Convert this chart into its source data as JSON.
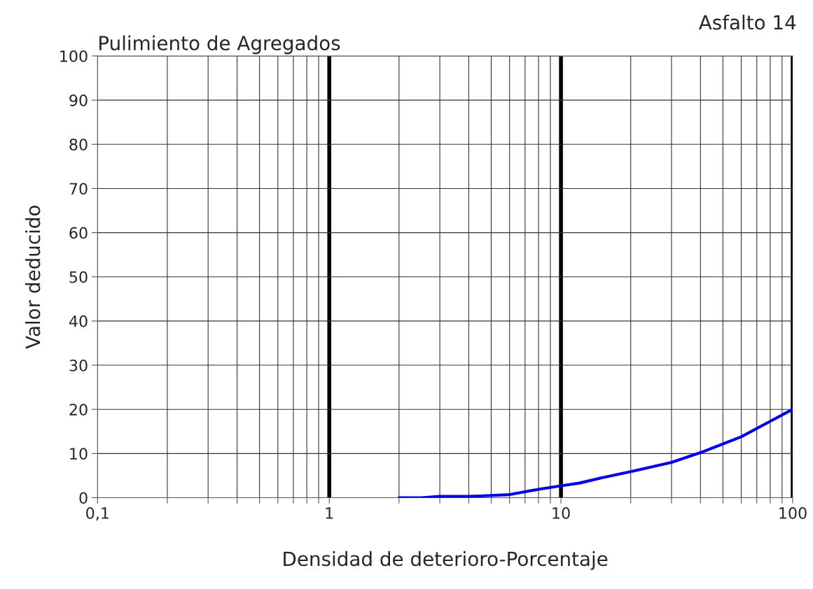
{
  "chart_data": {
    "type": "line",
    "title": "Pulimiento de Agregados",
    "xlabel": "Densidad de deterioro-Porcentaje",
    "ylabel": "Valor deducido",
    "annotations": [
      "Asfalto 14"
    ],
    "x": [
      2,
      2.5,
      3,
      4,
      4.5,
      6,
      8,
      10,
      12,
      15,
      20,
      30,
      40,
      60,
      80,
      100
    ],
    "series": [
      {
        "color": "#0000e6",
        "values": [
          0,
          0,
          0.3,
          0.3,
          0.4,
          0.7,
          1.9,
          2.7,
          3.3,
          4.5,
          5.9,
          8.0,
          10.2,
          13.8,
          17.3,
          20
        ]
      }
    ],
    "log": "x",
    "xlim": [
      0.1,
      100
    ],
    "ylim": [
      0,
      100
    ],
    "xticks": [
      {
        "value": 0.1,
        "label": "0,1"
      },
      {
        "value": 0.2,
        "label": null
      },
      {
        "value": 0.3,
        "label": null
      },
      {
        "value": 0.4,
        "label": null
      },
      {
        "value": 0.5,
        "label": null
      },
      {
        "value": 0.6,
        "label": null
      },
      {
        "value": 0.7,
        "label": null
      },
      {
        "value": 0.8,
        "label": null
      },
      {
        "value": 0.9,
        "label": null
      },
      1,
      {
        "value": 2,
        "label": null
      },
      {
        "value": 3,
        "label": null
      },
      {
        "value": 4,
        "label": null
      },
      {
        "value": 5,
        "label": null
      },
      {
        "value": 6,
        "label": null
      },
      {
        "value": 7,
        "label": null
      },
      {
        "value": 8,
        "label": null
      },
      {
        "value": 9,
        "label": null
      },
      10,
      {
        "value": 20,
        "label": null
      },
      {
        "value": 30,
        "label": null
      },
      {
        "value": 40,
        "label": null
      },
      {
        "value": 50,
        "label": null
      },
      {
        "value": 60,
        "label": null
      },
      {
        "value": 70,
        "label": null
      },
      {
        "value": 80,
        "label": null
      },
      {
        "value": 90,
        "label": null
      },
      100
    ],
    "yticks": [
      0,
      10,
      20,
      30,
      40,
      50,
      60,
      70,
      80,
      90,
      100
    ],
    "grid": true,
    "marker": "none",
    "line_style": "solid"
  }
}
